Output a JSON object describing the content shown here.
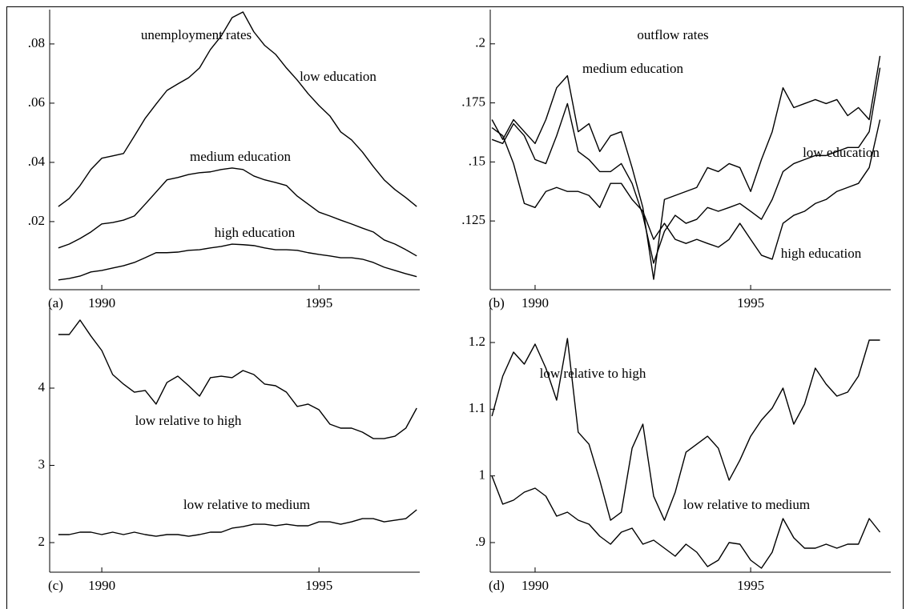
{
  "chart_data": [
    {
      "type": "line",
      "title": "unemployment rates",
      "label": "(a)",
      "x": [
        1989,
        1989.25,
        1989.5,
        1989.75,
        1990,
        1990.25,
        1990.5,
        1990.75,
        1991,
        1991.25,
        1991.5,
        1991.75,
        1992,
        1992.25,
        1992.5,
        1992.75,
        1993,
        1993.25,
        1993.5,
        1993.75,
        1994,
        1994.25,
        1994.5,
        1994.75,
        1995,
        1995.25,
        1995.5,
        1995.75,
        1996,
        1996.25,
        1996.5,
        1996.75,
        1997,
        1997.25
      ],
      "xlim": [
        1988.8,
        1997.32
      ],
      "xticks": [
        1990,
        1995
      ],
      "ylim": [
        -0.003,
        0.0916
      ],
      "yticks": [
        {
          "value": 0.02,
          "label": ".02"
        },
        {
          "value": 0.04,
          "label": ".04"
        },
        {
          "value": 0.06,
          "label": ".06"
        },
        {
          "value": 0.08,
          "label": ".08"
        }
      ],
      "series": [
        {
          "name": "low education",
          "color": "#000000",
          "values": [
            0.0251,
            0.0278,
            0.0322,
            0.0376,
            0.0414,
            0.0422,
            0.043,
            0.0489,
            0.0549,
            0.0597,
            0.0643,
            0.0665,
            0.0686,
            0.0719,
            0.0781,
            0.0827,
            0.0889,
            0.0908,
            0.0841,
            0.0795,
            0.0765,
            0.0719,
            0.0678,
            0.0632,
            0.0592,
            0.0557,
            0.0503,
            0.0476,
            0.0435,
            0.0386,
            0.0341,
            0.0308,
            0.0281,
            0.0251
          ]
        },
        {
          "name": "medium education",
          "color": "#000000",
          "values": [
            0.0111,
            0.0124,
            0.0143,
            0.0165,
            0.0192,
            0.0197,
            0.0205,
            0.0219,
            0.0259,
            0.03,
            0.0341,
            0.0349,
            0.0359,
            0.0365,
            0.0368,
            0.0376,
            0.0381,
            0.0376,
            0.0354,
            0.0341,
            0.0332,
            0.0322,
            0.0286,
            0.0259,
            0.0232,
            0.0219,
            0.0205,
            0.0192,
            0.0178,
            0.0165,
            0.0138,
            0.0124,
            0.0105,
            0.0084
          ]
        },
        {
          "name": "high education",
          "color": "#000000",
          "values": [
            0.0003,
            0.0008,
            0.0016,
            0.003,
            0.0035,
            0.0043,
            0.0051,
            0.0062,
            0.0078,
            0.0095,
            0.0095,
            0.0097,
            0.0103,
            0.0105,
            0.0111,
            0.0116,
            0.0124,
            0.0122,
            0.0119,
            0.0111,
            0.0105,
            0.0105,
            0.0103,
            0.0095,
            0.0089,
            0.0084,
            0.0078,
            0.0078,
            0.0073,
            0.0062,
            0.0046,
            0.0035,
            0.0024,
            0.0014
          ]
        }
      ]
    },
    {
      "type": "line",
      "title": "outflow rates",
      "label": "(b)",
      "x": [
        1989,
        1989.25,
        1989.5,
        1989.75,
        1990,
        1990.25,
        1990.5,
        1990.75,
        1991,
        1991.25,
        1991.5,
        1991.75,
        1992,
        1992.25,
        1992.5,
        1992.75,
        1993,
        1993.25,
        1993.5,
        1993.75,
        1994,
        1994.25,
        1994.5,
        1994.75,
        1995,
        1995.25,
        1995.5,
        1995.75,
        1996,
        1996.25,
        1996.5,
        1996.75,
        1997,
        1997.25,
        1997.5,
        1997.75,
        1998
      ],
      "xlim": [
        1988.96,
        1998.25
      ],
      "xticks": [
        1990,
        1995
      ],
      "ylim": [
        0.0959,
        0.2145
      ],
      "yticks": [
        {
          "value": 0.125,
          "label": ".125"
        },
        {
          "value": 0.15,
          "label": ".15"
        },
        {
          "value": 0.175,
          "label": ".175"
        },
        {
          "value": 0.2,
          "label": ".2"
        }
      ],
      "series": [
        {
          "name": "medium education",
          "color": "#000000",
          "values": [
            0.1679,
            0.1595,
            0.1679,
            0.1628,
            0.1578,
            0.1679,
            0.1814,
            0.1865,
            0.1628,
            0.1662,
            0.1544,
            0.1611,
            0.1628,
            0.1476,
            0.1307,
            0.1003,
            0.1341,
            0.1358,
            0.1375,
            0.1392,
            0.1476,
            0.1459,
            0.1493,
            0.1476,
            0.1375,
            0.151,
            0.1628,
            0.1814,
            0.173,
            0.1747,
            0.1764,
            0.1747,
            0.1764,
            0.1696,
            0.173,
            0.1679,
            0.1949
          ]
        },
        {
          "name": "low education",
          "color": "#000000",
          "values": [
            0.1595,
            0.1578,
            0.1662,
            0.1611,
            0.151,
            0.1493,
            0.1611,
            0.1747,
            0.1544,
            0.151,
            0.1459,
            0.1459,
            0.1493,
            0.1409,
            0.1274,
            0.1071,
            0.1206,
            0.1274,
            0.124,
            0.1257,
            0.1307,
            0.1291,
            0.1307,
            0.1324,
            0.1291,
            0.1257,
            0.1341,
            0.1459,
            0.1493,
            0.151,
            0.1527,
            0.1527,
            0.1544,
            0.1561,
            0.1561,
            0.1628,
            0.1899
          ]
        },
        {
          "name": "high education",
          "color": "#000000",
          "values": [
            0.1645,
            0.1611,
            0.1493,
            0.1324,
            0.1307,
            0.1375,
            0.1392,
            0.1375,
            0.1375,
            0.1358,
            0.1307,
            0.1409,
            0.1409,
            0.1341,
            0.1291,
            0.1172,
            0.124,
            0.1172,
            0.1155,
            0.1172,
            0.1155,
            0.1139,
            0.1172,
            0.124,
            0.1172,
            0.1105,
            0.1088,
            0.124,
            0.1274,
            0.1291,
            0.1324,
            0.1341,
            0.1375,
            0.1392,
            0.1409,
            0.1476,
            0.1679
          ]
        }
      ]
    },
    {
      "type": "line",
      "label": "(c)",
      "x": [
        1989,
        1989.25,
        1989.5,
        1989.75,
        1990,
        1990.25,
        1990.5,
        1990.75,
        1991,
        1991.25,
        1991.5,
        1991.75,
        1992,
        1992.25,
        1992.5,
        1992.75,
        1993,
        1993.25,
        1993.5,
        1993.75,
        1994,
        1994.25,
        1994.5,
        1994.75,
        1995,
        1995.25,
        1995.5,
        1995.75,
        1996,
        1996.25,
        1996.5,
        1996.75,
        1997,
        1997.25
      ],
      "xlim": [
        1988.8,
        1997.32
      ],
      "xticks": [
        1990,
        1995
      ],
      "ylim": [
        1.617,
        5.036
      ],
      "yticks": [
        2,
        3,
        4
      ],
      "series": [
        {
          "name": "low relative to high",
          "color": "#000000",
          "values": [
            4.694,
            4.694,
            4.881,
            4.674,
            4.487,
            4.176,
            4.052,
            3.948,
            3.969,
            3.793,
            4.073,
            4.155,
            4.031,
            3.896,
            4.135,
            4.155,
            4.135,
            4.228,
            4.176,
            4.052,
            4.031,
            3.948,
            3.762,
            3.793,
            3.72,
            3.534,
            3.482,
            3.482,
            3.43,
            3.347,
            3.347,
            3.378,
            3.482,
            3.741
          ]
        },
        {
          "name": "low relative to medium",
          "color": "#000000",
          "values": [
            2.104,
            2.104,
            2.135,
            2.135,
            2.104,
            2.135,
            2.104,
            2.135,
            2.104,
            2.083,
            2.104,
            2.104,
            2.083,
            2.104,
            2.135,
            2.135,
            2.187,
            2.207,
            2.238,
            2.238,
            2.218,
            2.238,
            2.218,
            2.218,
            2.269,
            2.269,
            2.238,
            2.269,
            2.311,
            2.311,
            2.269,
            2.29,
            2.311,
            2.425
          ]
        }
      ]
    },
    {
      "type": "line",
      "label": "(d)",
      "x": [
        1989,
        1989.25,
        1989.5,
        1989.75,
        1990,
        1990.25,
        1990.5,
        1990.75,
        1991,
        1991.25,
        1991.5,
        1991.75,
        1992,
        1992.25,
        1992.5,
        1992.75,
        1993,
        1993.25,
        1993.5,
        1993.75,
        1994,
        1994.25,
        1994.5,
        1994.75,
        1995,
        1995.25,
        1995.5,
        1995.75,
        1996,
        1996.25,
        1996.5,
        1996.75,
        1997,
        1997.25,
        1997.5,
        1997.75,
        1998
      ],
      "xlim": [
        1988.96,
        1998.25
      ],
      "xticks": [
        1990,
        1995
      ],
      "ylim": [
        0.8556,
        1.2516
      ],
      "yticks": [
        {
          "value": 0.9,
          "label": ".9"
        },
        1,
        1.1,
        1.2
      ],
      "series": [
        {
          "name": "low relative to high",
          "color": "#000000",
          "values": [
            1.0896,
            1.1496,
            1.1856,
            1.1676,
            1.1976,
            1.1616,
            1.1136,
            1.206,
            1.0655,
            1.0475,
            0.9935,
            0.9335,
            0.9455,
            1.0415,
            1.0776,
            0.9695,
            0.9335,
            0.9755,
            1.0355,
            1.0475,
            1.0595,
            1.0415,
            0.9935,
            1.0235,
            1.0595,
            1.0836,
            1.1016,
            1.1316,
            1.0776,
            1.1076,
            1.1616,
            1.1376,
            1.1196,
            1.1256,
            1.1496,
            1.2036,
            1.2036
          ]
        },
        {
          "name": "low relative to medium",
          "color": "#000000",
          "values": [
            0.9996,
            0.9576,
            0.9636,
            0.9756,
            0.9816,
            0.9696,
            0.9396,
            0.9456,
            0.9336,
            0.9276,
            0.9096,
            0.8976,
            0.9156,
            0.9216,
            0.8976,
            0.9036,
            0.8916,
            0.8796,
            0.8976,
            0.8856,
            0.864,
            0.8736,
            0.9,
            0.8976,
            0.8736,
            0.8616,
            0.8856,
            0.936,
            0.9072,
            0.8916,
            0.8916,
            0.8976,
            0.8916,
            0.8976,
            0.8976,
            0.936,
            0.9156
          ]
        }
      ]
    }
  ]
}
